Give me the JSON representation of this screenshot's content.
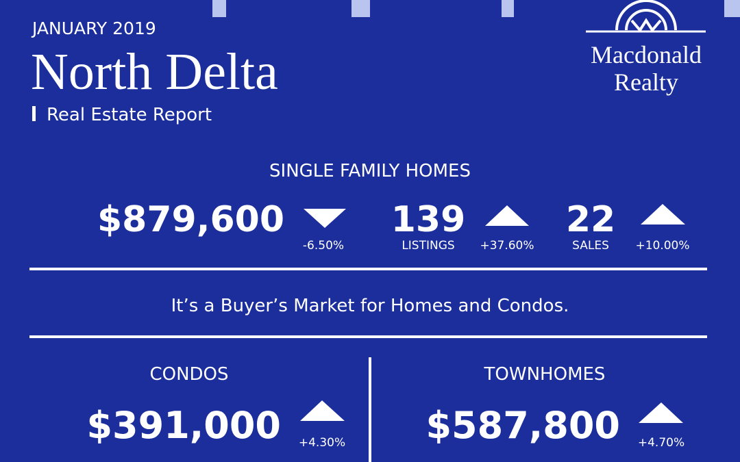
{
  "header": {
    "date": "JANUARY 2019",
    "title": "North Delta",
    "subtitle": "Real Estate Report"
  },
  "logo": {
    "line1": "Macdonald",
    "line2": "Realty"
  },
  "single_family": {
    "heading": "SINGLE FAMILY HOMES",
    "price": "$879,600",
    "price_change": "-6.50%",
    "listings": "139",
    "listings_label": "LISTINGS",
    "listings_change": "+37.60%",
    "sales": "22",
    "sales_label": "SALES",
    "sales_change": "+10.00%"
  },
  "message": "It’s a Buyer’s Market for Homes and Condos.",
  "condos": {
    "heading": "CONDOS",
    "price": "$391,000",
    "change": "+4.30%"
  },
  "townhomes": {
    "heading": "TOWNHOMES",
    "price": "$587,800",
    "change": "+4.70%"
  }
}
